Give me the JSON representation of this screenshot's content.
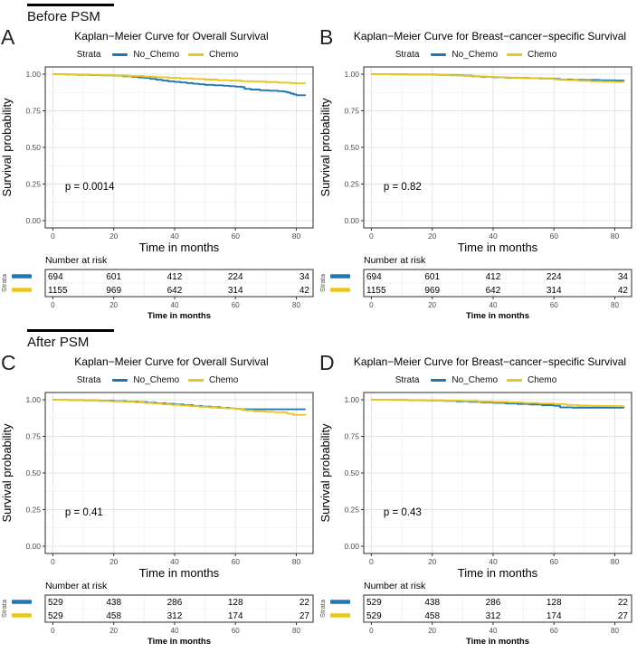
{
  "figure": {
    "sections": [
      {
        "label": "Before PSM"
      },
      {
        "label": "After PSM"
      }
    ]
  },
  "legend": {
    "title": "Strata",
    "series": [
      {
        "name": "No_Chemo",
        "color": "#2077B4"
      },
      {
        "name": "Chemo",
        "color": "#E9C51D"
      }
    ]
  },
  "chart_data": [
    {
      "panel": "A",
      "section": "Before PSM",
      "type": "line",
      "subtype": "kaplan-meier-step",
      "title": "Kaplan−Meier Curve for Overall Survival",
      "xlabel": "Time in months",
      "ylabel": "Survival probability",
      "xlim": [
        0,
        83
      ],
      "ylim": [
        0,
        1
      ],
      "xticks": [
        0,
        20,
        40,
        60,
        80
      ],
      "yticks": [
        0,
        0.25,
        0.5,
        0.75,
        1
      ],
      "p_label": "p = 0.0014",
      "legend_title": "Strata",
      "grid": true,
      "legend_position": "top",
      "series": [
        {
          "name": "No_Chemo",
          "color": "#2077B4",
          "x": [
            0,
            4,
            8,
            12,
            16,
            20,
            23,
            26,
            28,
            30,
            32,
            34,
            36,
            38,
            40,
            42,
            44,
            46,
            48,
            50,
            53,
            56,
            58,
            60,
            62,
            63,
            65,
            68,
            71,
            74,
            76,
            77,
            78,
            79,
            80,
            83
          ],
          "y": [
            1.0,
            0.998,
            0.996,
            0.994,
            0.992,
            0.99,
            0.986,
            0.982,
            0.978,
            0.974,
            0.968,
            0.962,
            0.956,
            0.951,
            0.947,
            0.943,
            0.939,
            0.935,
            0.931,
            0.927,
            0.924,
            0.921,
            0.918,
            0.915,
            0.912,
            0.9,
            0.895,
            0.89,
            0.887,
            0.884,
            0.88,
            0.875,
            0.868,
            0.862,
            0.856,
            0.855
          ]
        },
        {
          "name": "Chemo",
          "color": "#E9C51D",
          "x": [
            0,
            5,
            10,
            15,
            20,
            25,
            30,
            34,
            38,
            42,
            46,
            50,
            54,
            58,
            62,
            66,
            70,
            74,
            78,
            80,
            83
          ],
          "y": [
            1.0,
            0.998,
            0.996,
            0.993,
            0.99,
            0.987,
            0.983,
            0.979,
            0.975,
            0.971,
            0.967,
            0.963,
            0.959,
            0.956,
            0.952,
            0.949,
            0.946,
            0.942,
            0.939,
            0.937,
            0.936
          ]
        }
      ],
      "risk_table": {
        "title": "Number at risk",
        "axis_label": "Strata",
        "time_points": [
          0,
          20,
          40,
          60,
          80
        ],
        "xlabel": "Time in months",
        "rows": [
          {
            "name": "No_Chemo",
            "color": "#2077B4",
            "values": [
              694,
              601,
              412,
              224,
              34
            ]
          },
          {
            "name": "Chemo",
            "color": "#E9C51D",
            "values": [
              1155,
              969,
              642,
              314,
              42
            ]
          }
        ]
      }
    },
    {
      "panel": "B",
      "section": "Before PSM",
      "type": "line",
      "subtype": "kaplan-meier-step",
      "title": "Kaplan−Meier Curve for Breast−cancer−specific Survival",
      "xlabel": "Time in months",
      "ylabel": "Survival probability",
      "xlim": [
        0,
        83
      ],
      "ylim": [
        0,
        1
      ],
      "xticks": [
        0,
        20,
        40,
        60,
        80
      ],
      "yticks": [
        0,
        0.25,
        0.5,
        0.75,
        1
      ],
      "p_label": "p = 0.82",
      "legend_title": "Strata",
      "grid": true,
      "legend_position": "top",
      "series": [
        {
          "name": "No_Chemo",
          "color": "#2077B4",
          "x": [
            0,
            6,
            12,
            18,
            22,
            26,
            30,
            33,
            36,
            40,
            44,
            48,
            52,
            56,
            60,
            62,
            66,
            70,
            75,
            80,
            83
          ],
          "y": [
            1.0,
            0.999,
            0.998,
            0.997,
            0.995,
            0.993,
            0.99,
            0.986,
            0.982,
            0.979,
            0.976,
            0.974,
            0.972,
            0.97,
            0.968,
            0.963,
            0.961,
            0.96,
            0.958,
            0.956,
            0.955
          ]
        },
        {
          "name": "Chemo",
          "color": "#E9C51D",
          "x": [
            0,
            6,
            12,
            18,
            22,
            26,
            30,
            34,
            38,
            42,
            46,
            50,
            55,
            60,
            64,
            68,
            72,
            76,
            80,
            83
          ],
          "y": [
            1.0,
            0.999,
            0.998,
            0.996,
            0.994,
            0.992,
            0.989,
            0.985,
            0.981,
            0.978,
            0.975,
            0.972,
            0.969,
            0.964,
            0.959,
            0.955,
            0.951,
            0.949,
            0.947,
            0.946
          ]
        }
      ],
      "risk_table": {
        "title": "Number at risk",
        "axis_label": "Strata",
        "time_points": [
          0,
          20,
          40,
          60,
          80
        ],
        "xlabel": "Time in months",
        "rows": [
          {
            "name": "No_Chemo",
            "color": "#2077B4",
            "values": [
              694,
              601,
              412,
              224,
              34
            ]
          },
          {
            "name": "Chemo",
            "color": "#E9C51D",
            "values": [
              1155,
              969,
              642,
              314,
              42
            ]
          }
        ]
      }
    },
    {
      "panel": "C",
      "section": "After PSM",
      "type": "line",
      "subtype": "kaplan-meier-step",
      "title": "Kaplan−Meier Curve for Overall Survival",
      "xlabel": "Time in months",
      "ylabel": "Survival probability",
      "xlim": [
        0,
        83
      ],
      "ylim": [
        0,
        1
      ],
      "xticks": [
        0,
        20,
        40,
        60,
        80
      ],
      "yticks": [
        0,
        0.25,
        0.5,
        0.75,
        1
      ],
      "p_label": "p = 0.41",
      "legend_title": "Strata",
      "grid": true,
      "legend_position": "top",
      "series": [
        {
          "name": "No_Chemo",
          "color": "#2077B4",
          "x": [
            0,
            5,
            10,
            15,
            20,
            24,
            28,
            31,
            34,
            37,
            40,
            43,
            46,
            49,
            52,
            55,
            58,
            60,
            62,
            83
          ],
          "y": [
            1.0,
            0.998,
            0.996,
            0.993,
            0.99,
            0.987,
            0.984,
            0.98,
            0.976,
            0.972,
            0.968,
            0.963,
            0.958,
            0.953,
            0.949,
            0.945,
            0.941,
            0.938,
            0.935,
            0.935
          ]
        },
        {
          "name": "Chemo",
          "color": "#E9C51D",
          "x": [
            0,
            5,
            10,
            15,
            19,
            23,
            27,
            30,
            33,
            36,
            39,
            42,
            45,
            48,
            51,
            54,
            57,
            60,
            63,
            66,
            70,
            73,
            76,
            77,
            79,
            83
          ],
          "y": [
            1.0,
            0.998,
            0.995,
            0.992,
            0.989,
            0.986,
            0.982,
            0.978,
            0.974,
            0.969,
            0.965,
            0.96,
            0.956,
            0.952,
            0.948,
            0.944,
            0.941,
            0.938,
            0.927,
            0.921,
            0.917,
            0.915,
            0.913,
            0.905,
            0.897,
            0.895
          ]
        }
      ],
      "risk_table": {
        "title": "Number at risk",
        "axis_label": "Strata",
        "time_points": [
          0,
          20,
          40,
          60,
          80
        ],
        "xlabel": "Time in months",
        "rows": [
          {
            "name": "No_Chemo",
            "color": "#2077B4",
            "values": [
              529,
              438,
              286,
              128,
              22
            ]
          },
          {
            "name": "Chemo",
            "color": "#E9C51D",
            "values": [
              529,
              458,
              312,
              174,
              27
            ]
          }
        ]
      }
    },
    {
      "panel": "D",
      "section": "After PSM",
      "type": "line",
      "subtype": "kaplan-meier-step",
      "title": "Kaplan−Meier Curve for Breast−cancer−specific Survival",
      "xlabel": "Time in months",
      "ylabel": "Survival probability",
      "xlim": [
        0,
        83
      ],
      "ylim": [
        0,
        1
      ],
      "xticks": [
        0,
        20,
        40,
        60,
        80
      ],
      "yticks": [
        0,
        0.25,
        0.5,
        0.75,
        1
      ],
      "p_label": "p = 0.43",
      "legend_title": "Strata",
      "grid": true,
      "legend_position": "top",
      "series": [
        {
          "name": "No_Chemo",
          "color": "#2077B4",
          "x": [
            0,
            6,
            12,
            18,
            24,
            28,
            32,
            36,
            40,
            44,
            48,
            52,
            56,
            60,
            62,
            66,
            83
          ],
          "y": [
            1.0,
            0.999,
            0.997,
            0.995,
            0.992,
            0.989,
            0.986,
            0.983,
            0.979,
            0.975,
            0.971,
            0.967,
            0.963,
            0.959,
            0.948,
            0.946,
            0.945
          ]
        },
        {
          "name": "Chemo",
          "color": "#E9C51D",
          "x": [
            0,
            6,
            12,
            18,
            24,
            30,
            35,
            40,
            45,
            50,
            55,
            60,
            64,
            68,
            72,
            76,
            80,
            83
          ],
          "y": [
            1.0,
            0.999,
            0.998,
            0.996,
            0.994,
            0.991,
            0.988,
            0.985,
            0.982,
            0.978,
            0.974,
            0.97,
            0.964,
            0.96,
            0.958,
            0.957,
            0.956,
            0.955
          ]
        }
      ],
      "risk_table": {
        "title": "Number at risk",
        "axis_label": "Strata",
        "time_points": [
          0,
          20,
          40,
          60,
          80
        ],
        "xlabel": "Time in months",
        "rows": [
          {
            "name": "No_Chemo",
            "color": "#2077B4",
            "values": [
              529,
              438,
              286,
              128,
              22
            ]
          },
          {
            "name": "Chemo",
            "color": "#E9C51D",
            "values": [
              529,
              458,
              312,
              174,
              27
            ]
          }
        ]
      }
    }
  ]
}
